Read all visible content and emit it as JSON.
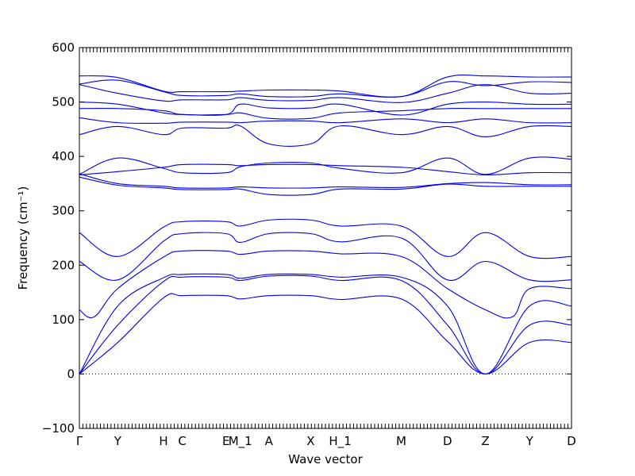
{
  "chart_data": {
    "type": "line",
    "title": "",
    "xlabel": "Wave vector",
    "ylabel": "Frequency (cm⁻¹)",
    "ylim": [
      -100,
      600
    ],
    "yticks": [
      -100,
      0,
      100,
      200,
      300,
      400,
      500,
      600
    ],
    "xlim": [
      0,
      1
    ],
    "grid": false,
    "zero_line": 0,
    "high_symmetry_points": [
      {
        "label": "Γ",
        "x": 0.0
      },
      {
        "label": "Y",
        "x": 0.078
      },
      {
        "label": "H",
        "x": 0.171
      },
      {
        "label": "C",
        "x": 0.209
      },
      {
        "label": "E",
        "x": 0.298
      },
      {
        "label": "M_1",
        "x": 0.327
      },
      {
        "label": "A",
        "x": 0.385
      },
      {
        "label": "X",
        "x": 0.47
      },
      {
        "label": "H_1",
        "x": 0.53
      },
      {
        "label": "M",
        "x": 0.654
      },
      {
        "label": "D",
        "x": 0.748
      },
      {
        "label": "Z",
        "x": 0.825
      },
      {
        "label": "Y",
        "x": 0.915
      },
      {
        "label": "D",
        "x": 1.0
      }
    ],
    "series": [
      {
        "x": [
          0,
          0.078,
          0.171,
          0.209,
          0.298,
          0.327,
          0.385,
          0.47,
          0.53,
          0.654,
          0.748,
          0.825,
          0.915,
          1.0
        ],
        "values": [
          0,
          58,
          140,
          144,
          144,
          138,
          144,
          144,
          137,
          138,
          60,
          0,
          58,
          58
        ]
      },
      {
        "x": [
          0,
          0.078,
          0.171,
          0.209,
          0.298,
          0.327,
          0.385,
          0.47,
          0.53,
          0.654,
          0.748,
          0.825,
          0.915,
          1.0
        ],
        "values": [
          0,
          90,
          170,
          178,
          178,
          172,
          180,
          180,
          172,
          172,
          90,
          0,
          90,
          90
        ]
      },
      {
        "x": [
          0,
          0.078,
          0.171,
          0.209,
          0.298,
          0.327,
          0.385,
          0.47,
          0.53,
          0.654,
          0.748,
          0.825,
          0.915,
          1.0
        ],
        "values": [
          0,
          125,
          177,
          183,
          183,
          176,
          183,
          183,
          178,
          178,
          125,
          0,
          125,
          125
        ]
      },
      {
        "x": [
          0,
          0.03,
          0.078,
          0.171,
          0.209,
          0.298,
          0.327,
          0.385,
          0.47,
          0.53,
          0.654,
          0.748,
          0.825,
          0.88,
          0.915,
          1.0
        ],
        "values": [
          118,
          105,
          157,
          215,
          226,
          226,
          220,
          226,
          226,
          221,
          216,
          157,
          118,
          105,
          157,
          157
        ]
      },
      {
        "x": [
          0,
          0.078,
          0.171,
          0.209,
          0.298,
          0.327,
          0.385,
          0.47,
          0.53,
          0.654,
          0.748,
          0.825,
          0.915,
          1.0
        ],
        "values": [
          207,
          173,
          244,
          258,
          258,
          242,
          258,
          258,
          243,
          250,
          173,
          207,
          173,
          173
        ]
      },
      {
        "x": [
          0,
          0.078,
          0.171,
          0.209,
          0.298,
          0.327,
          0.385,
          0.47,
          0.53,
          0.654,
          0.748,
          0.825,
          0.915,
          1.0
        ],
        "values": [
          260,
          216,
          270,
          280,
          280,
          272,
          283,
          283,
          272,
          272,
          216,
          260,
          216,
          216
        ]
      },
      {
        "x": [
          0,
          0.078,
          0.171,
          0.209,
          0.298,
          0.327,
          0.385,
          0.47,
          0.53,
          0.654,
          0.748,
          0.825,
          0.915,
          1.0
        ],
        "values": [
          362,
          347,
          342,
          339,
          339,
          340,
          330,
          330,
          340,
          340,
          349,
          345,
          345,
          345
        ]
      },
      {
        "x": [
          0,
          0.078,
          0.171,
          0.209,
          0.298,
          0.327,
          0.385,
          0.47,
          0.53,
          0.654,
          0.748,
          0.825,
          0.915,
          1.0
        ],
        "values": [
          368,
          350,
          345,
          342,
          342,
          344,
          342,
          342,
          344,
          343,
          350,
          352,
          348,
          348
        ]
      },
      {
        "x": [
          0,
          0.078,
          0.171,
          0.209,
          0.298,
          0.327,
          0.385,
          0.47,
          0.53,
          0.654,
          0.748,
          0.825,
          0.915,
          1.0
        ],
        "values": [
          366,
          372,
          380,
          385,
          385,
          383,
          385,
          385,
          383,
          380,
          372,
          366,
          370,
          370
        ]
      },
      {
        "x": [
          0,
          0.078,
          0.171,
          0.209,
          0.298,
          0.327,
          0.385,
          0.47,
          0.53,
          0.654,
          0.748,
          0.825,
          0.915,
          1.0
        ],
        "values": [
          367,
          397,
          378,
          370,
          370,
          381,
          388,
          388,
          378,
          370,
          397,
          367,
          397,
          395
        ]
      },
      {
        "x": [
          0,
          0.078,
          0.171,
          0.209,
          0.298,
          0.327,
          0.385,
          0.47,
          0.53,
          0.654,
          0.748,
          0.825,
          0.915,
          1.0
        ],
        "values": [
          440,
          455,
          440,
          452,
          452,
          456,
          423,
          423,
          456,
          440,
          455,
          436,
          455,
          455
        ]
      },
      {
        "x": [
          0,
          0.078,
          0.171,
          0.209,
          0.298,
          0.327,
          0.385,
          0.47,
          0.53,
          0.654,
          0.748,
          0.825,
          0.915,
          1.0
        ],
        "values": [
          471,
          462,
          461,
          463,
          463,
          462,
          465,
          465,
          462,
          469,
          462,
          469,
          462,
          462
        ]
      },
      {
        "x": [
          0,
          0.078,
          0.171,
          0.209,
          0.298,
          0.327,
          0.385,
          0.47,
          0.53,
          0.654,
          0.748,
          0.825,
          0.915,
          1.0
        ],
        "values": [
          488,
          488,
          484,
          477,
          477,
          480,
          470,
          470,
          480,
          484,
          488,
          488,
          488,
          488
        ]
      },
      {
        "x": [
          0,
          0.078,
          0.171,
          0.209,
          0.298,
          0.327,
          0.385,
          0.47,
          0.53,
          0.654,
          0.748,
          0.825,
          0.915,
          1.0
        ],
        "values": [
          500,
          496,
          480,
          477,
          477,
          496,
          489,
          489,
          496,
          476,
          496,
          500,
          496,
          496
        ]
      },
      {
        "x": [
          0,
          0.078,
          0.171,
          0.209,
          0.298,
          0.327,
          0.385,
          0.47,
          0.53,
          0.654,
          0.748,
          0.825,
          0.915,
          1.0
        ],
        "values": [
          532,
          516,
          502,
          504,
          504,
          508,
          503,
          503,
          508,
          499,
          516,
          532,
          516,
          516
        ]
      },
      {
        "x": [
          0,
          0.078,
          0.171,
          0.209,
          0.298,
          0.327,
          0.385,
          0.47,
          0.53,
          0.654,
          0.748,
          0.825,
          0.915,
          1.0
        ],
        "values": [
          533,
          540,
          519,
          512,
          512,
          515,
          510,
          510,
          515,
          510,
          537,
          530,
          537,
          536
        ]
      },
      {
        "x": [
          0,
          0.078,
          0.171,
          0.209,
          0.298,
          0.327,
          0.385,
          0.47,
          0.53,
          0.654,
          0.748,
          0.825,
          0.915,
          1.0
        ],
        "values": [
          548,
          545,
          520,
          519,
          519,
          520,
          522,
          522,
          520,
          510,
          546,
          548,
          546,
          546
        ]
      }
    ]
  },
  "style": {
    "band_color": "#0000ee",
    "axis_color": "#000000",
    "background": "#ffffff"
  }
}
